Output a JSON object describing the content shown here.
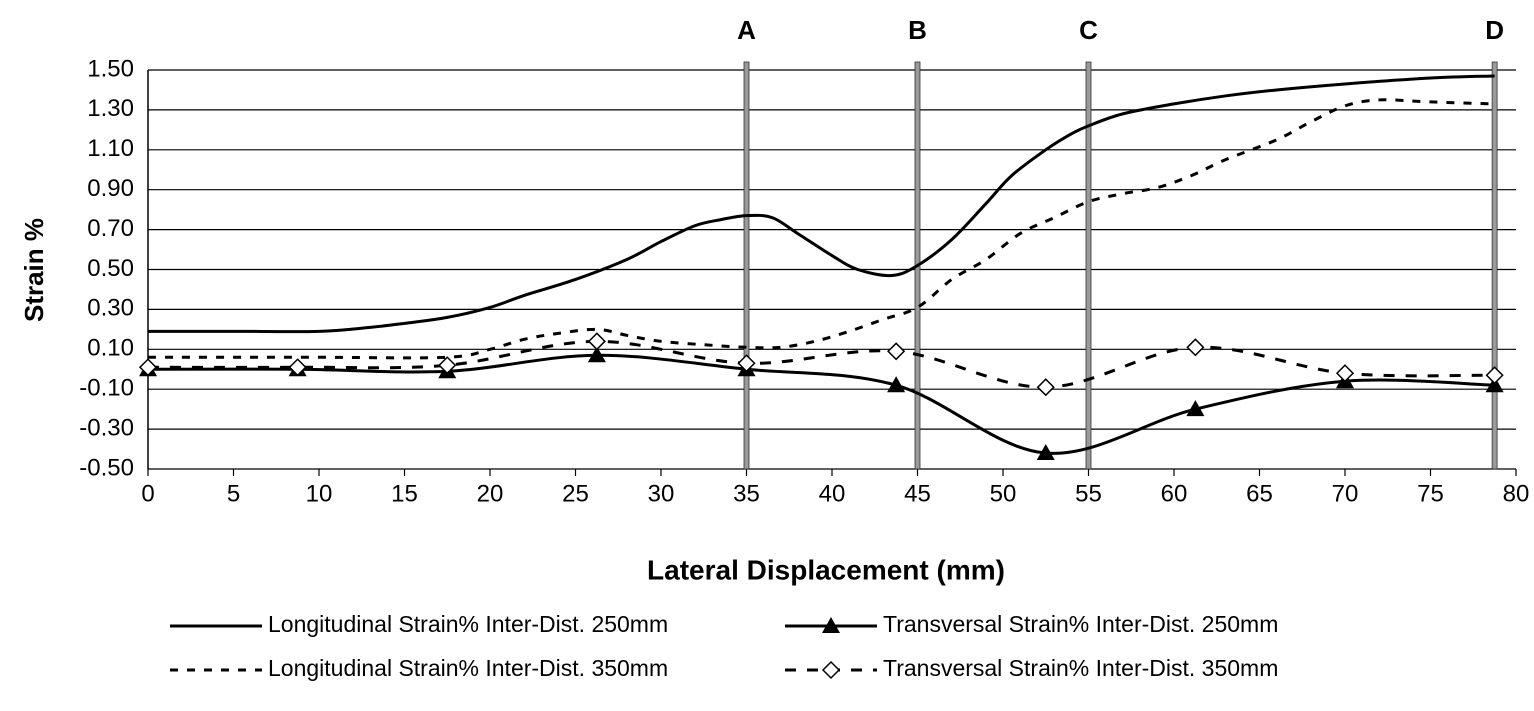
{
  "chart_data": {
    "type": "line",
    "x_label": "Lateral Displacement (mm)",
    "y_label": "Strain %",
    "xlim": [
      0,
      80
    ],
    "ylim": [
      -0.5,
      1.5
    ],
    "xticks": [
      0,
      5,
      10,
      15,
      20,
      25,
      30,
      35,
      40,
      45,
      50,
      55,
      60,
      65,
      70,
      75,
      80
    ],
    "yticks": [
      {
        "value": -0.5,
        "label": "-0.50"
      },
      {
        "value": -0.3,
        "label": "-0.30"
      },
      {
        "value": -0.1,
        "label": "-0.10"
      },
      {
        "value": 0.1,
        "label": "0.10"
      },
      {
        "value": 0.3,
        "label": "0.30"
      },
      {
        "value": 0.5,
        "label": "0.50"
      },
      {
        "value": 0.7,
        "label": "0.70"
      },
      {
        "value": 0.9,
        "label": "0.90"
      },
      {
        "value": 1.1,
        "label": "1.10"
      },
      {
        "value": 1.3,
        "label": "1.30"
      },
      {
        "value": 1.5,
        "label": "1.50"
      }
    ],
    "grid": true,
    "vlines": [
      {
        "x": 35,
        "label": "A"
      },
      {
        "x": 45,
        "label": "B"
      },
      {
        "x": 55,
        "label": "C"
      },
      {
        "x": 78.75,
        "label": "D"
      }
    ],
    "series": [
      {
        "name": "Longitudinal Strain% Inter-Dist. 250mm",
        "color": "#000000",
        "dash": "solid",
        "marker": "none",
        "x": [
          0,
          5,
          10,
          13,
          15,
          17.5,
          20,
          22,
          25,
          28,
          30,
          32,
          33.5,
          35,
          36.5,
          38,
          40,
          41.5,
          43.5,
          45,
          47,
          49,
          50.5,
          52.5,
          54,
          55,
          57,
          60,
          63,
          66,
          70,
          75,
          78.75
        ],
        "values": [
          0.19,
          0.19,
          0.19,
          0.21,
          0.23,
          0.26,
          0.31,
          0.37,
          0.45,
          0.55,
          0.64,
          0.72,
          0.75,
          0.77,
          0.76,
          0.68,
          0.57,
          0.5,
          0.47,
          0.52,
          0.65,
          0.83,
          0.97,
          1.1,
          1.18,
          1.22,
          1.28,
          1.33,
          1.37,
          1.4,
          1.43,
          1.46,
          1.47
        ]
      },
      {
        "name": "Transversal Strain% Inter-Dist. 250mm",
        "color": "#000000",
        "dash": "solid",
        "marker": "triangle",
        "x": [
          0,
          8.75,
          17.5,
          26.25,
          35,
          43.75,
          52.5,
          61.25,
          70,
          78.75
        ],
        "values": [
          0.0,
          0.0,
          -0.01,
          0.07,
          0.0,
          -0.08,
          -0.42,
          -0.2,
          -0.06,
          -0.08
        ]
      },
      {
        "name": "Longitudinal Strain% Inter-Dist. 350mm",
        "color": "#000000",
        "dash": "dashed",
        "marker": "none",
        "x": [
          0,
          5,
          10,
          17.5,
          20,
          22,
          24,
          26.25,
          28,
          30,
          33,
          35,
          37,
          39,
          41,
          43,
          45,
          47,
          49,
          51,
          53,
          55,
          57,
          59,
          61,
          63,
          66,
          68,
          70,
          72,
          75,
          78.75
        ],
        "values": [
          0.06,
          0.06,
          0.06,
          0.06,
          0.1,
          0.15,
          0.18,
          0.2,
          0.17,
          0.14,
          0.12,
          0.11,
          0.11,
          0.14,
          0.19,
          0.25,
          0.31,
          0.45,
          0.55,
          0.68,
          0.76,
          0.84,
          0.88,
          0.91,
          0.97,
          1.05,
          1.15,
          1.24,
          1.32,
          1.35,
          1.34,
          1.33
        ]
      },
      {
        "name": "Transversal Strain% Inter-Dist. 350mm",
        "color": "#000000",
        "dash": "dashed",
        "marker": "diamond",
        "x": [
          0,
          8.75,
          17.5,
          26.25,
          35,
          43.75,
          52.5,
          61.25,
          70,
          78.75
        ],
        "values": [
          0.01,
          0.01,
          0.02,
          0.14,
          0.03,
          0.09,
          -0.09,
          0.11,
          -0.02,
          -0.03
        ]
      }
    ]
  }
}
